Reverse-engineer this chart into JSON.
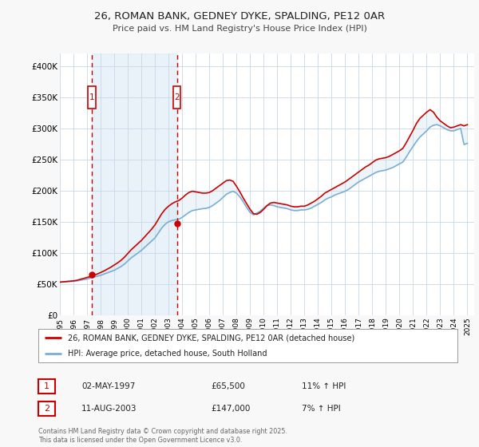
{
  "title": "26, ROMAN BANK, GEDNEY DYKE, SPALDING, PE12 0AR",
  "subtitle": "Price paid vs. HM Land Registry's House Price Index (HPI)",
  "legend_line1": "26, ROMAN BANK, GEDNEY DYKE, SPALDING, PE12 0AR (detached house)",
  "legend_line2": "HPI: Average price, detached house, South Holland",
  "footnote": "Contains HM Land Registry data © Crown copyright and database right 2025.\nThis data is licensed under the Open Government Licence v3.0.",
  "sale1_date": "02-MAY-1997",
  "sale1_price": "£65,500",
  "sale1_hpi": "11% ↑ HPI",
  "sale2_date": "11-AUG-2003",
  "sale2_price": "£147,000",
  "sale2_hpi": "7% ↑ HPI",
  "sale1_year": 1997.34,
  "sale2_year": 2003.61,
  "price_color": "#cc0000",
  "hpi_color": "#7aaed6",
  "fill_color": "#d0e4f0",
  "shade_color": "#daeaf4",
  "background_color": "#f8f8f8",
  "plot_bg_color": "#ffffff",
  "grid_color": "#c8d8e8",
  "sale_marker_color": "#cc0000",
  "dashed_line_color": "#cc0000",
  "ylim_min": 0,
  "ylim_max": 420000,
  "yticks": [
    0,
    50000,
    100000,
    150000,
    200000,
    250000,
    300000,
    350000,
    400000
  ],
  "ytick_labels": [
    "£0",
    "£50K",
    "£100K",
    "£150K",
    "£200K",
    "£250K",
    "£300K",
    "£350K",
    "£400K"
  ],
  "hpi_data": [
    [
      1995.0,
      53000
    ],
    [
      1995.25,
      53500
    ],
    [
      1995.5,
      54000
    ],
    [
      1995.75,
      54200
    ],
    [
      1996.0,
      54500
    ],
    [
      1996.25,
      55000
    ],
    [
      1996.5,
      56000
    ],
    [
      1996.75,
      57000
    ],
    [
      1997.0,
      58000
    ],
    [
      1997.25,
      59500
    ],
    [
      1997.5,
      61000
    ],
    [
      1997.75,
      62500
    ],
    [
      1998.0,
      64000
    ],
    [
      1998.25,
      66000
    ],
    [
      1998.5,
      68000
    ],
    [
      1998.75,
      70000
    ],
    [
      1999.0,
      72000
    ],
    [
      1999.25,
      75000
    ],
    [
      1999.5,
      78000
    ],
    [
      1999.75,
      82000
    ],
    [
      2000.0,
      87000
    ],
    [
      2000.25,
      92000
    ],
    [
      2000.5,
      96000
    ],
    [
      2000.75,
      100000
    ],
    [
      2001.0,
      104000
    ],
    [
      2001.25,
      109000
    ],
    [
      2001.5,
      114000
    ],
    [
      2001.75,
      119000
    ],
    [
      2002.0,
      124000
    ],
    [
      2002.25,
      132000
    ],
    [
      2002.5,
      140000
    ],
    [
      2002.75,
      146000
    ],
    [
      2003.0,
      150000
    ],
    [
      2003.25,
      152000
    ],
    [
      2003.5,
      153000
    ],
    [
      2003.75,
      154000
    ],
    [
      2004.0,
      157000
    ],
    [
      2004.25,
      161000
    ],
    [
      2004.5,
      165000
    ],
    [
      2004.75,
      168000
    ],
    [
      2005.0,
      169000
    ],
    [
      2005.25,
      170000
    ],
    [
      2005.5,
      171000
    ],
    [
      2005.75,
      171500
    ],
    [
      2006.0,
      173000
    ],
    [
      2006.25,
      176000
    ],
    [
      2006.5,
      180000
    ],
    [
      2006.75,
      184000
    ],
    [
      2007.0,
      189000
    ],
    [
      2007.25,
      194000
    ],
    [
      2007.5,
      197000
    ],
    [
      2007.75,
      199000
    ],
    [
      2008.0,
      196000
    ],
    [
      2008.25,
      190000
    ],
    [
      2008.5,
      182000
    ],
    [
      2008.75,
      173000
    ],
    [
      2009.0,
      165000
    ],
    [
      2009.25,
      161000
    ],
    [
      2009.5,
      164000
    ],
    [
      2009.75,
      167000
    ],
    [
      2010.0,
      172000
    ],
    [
      2010.25,
      176000
    ],
    [
      2010.5,
      177000
    ],
    [
      2010.75,
      176000
    ],
    [
      2011.0,
      174000
    ],
    [
      2011.25,
      173000
    ],
    [
      2011.5,
      172000
    ],
    [
      2011.75,
      171000
    ],
    [
      2012.0,
      169000
    ],
    [
      2012.25,
      168000
    ],
    [
      2012.5,
      168000
    ],
    [
      2012.75,
      169000
    ],
    [
      2013.0,
      169000
    ],
    [
      2013.25,
      170000
    ],
    [
      2013.5,
      172000
    ],
    [
      2013.75,
      175000
    ],
    [
      2014.0,
      178000
    ],
    [
      2014.25,
      181000
    ],
    [
      2014.5,
      185000
    ],
    [
      2014.75,
      188000
    ],
    [
      2015.0,
      190000
    ],
    [
      2015.25,
      193000
    ],
    [
      2015.5,
      195000
    ],
    [
      2015.75,
      197000
    ],
    [
      2016.0,
      199000
    ],
    [
      2016.25,
      202000
    ],
    [
      2016.5,
      206000
    ],
    [
      2016.75,
      210000
    ],
    [
      2017.0,
      214000
    ],
    [
      2017.25,
      217000
    ],
    [
      2017.5,
      220000
    ],
    [
      2017.75,
      223000
    ],
    [
      2018.0,
      226000
    ],
    [
      2018.25,
      229000
    ],
    [
      2018.5,
      231000
    ],
    [
      2018.75,
      232000
    ],
    [
      2019.0,
      233000
    ],
    [
      2019.25,
      235000
    ],
    [
      2019.5,
      237000
    ],
    [
      2019.75,
      240000
    ],
    [
      2020.0,
      243000
    ],
    [
      2020.25,
      246000
    ],
    [
      2020.5,
      254000
    ],
    [
      2020.75,
      263000
    ],
    [
      2021.0,
      271000
    ],
    [
      2021.25,
      279000
    ],
    [
      2021.5,
      286000
    ],
    [
      2021.75,
      291000
    ],
    [
      2022.0,
      296000
    ],
    [
      2022.25,
      302000
    ],
    [
      2022.5,
      305000
    ],
    [
      2022.75,
      306000
    ],
    [
      2023.0,
      304000
    ],
    [
      2023.25,
      301000
    ],
    [
      2023.5,
      298000
    ],
    [
      2023.75,
      296000
    ],
    [
      2024.0,
      296000
    ],
    [
      2024.25,
      298000
    ],
    [
      2024.5,
      300000
    ],
    [
      2024.75,
      274000
    ],
    [
      2025.0,
      276000
    ]
  ],
  "price_data": [
    [
      1995.0,
      53000
    ],
    [
      1995.25,
      53500
    ],
    [
      1995.5,
      54000
    ],
    [
      1995.75,
      54500
    ],
    [
      1996.0,
      55000
    ],
    [
      1996.25,
      56000
    ],
    [
      1996.5,
      57500
    ],
    [
      1996.75,
      59000
    ],
    [
      1997.0,
      60500
    ],
    [
      1997.25,
      62000
    ],
    [
      1997.5,
      64000
    ],
    [
      1997.75,
      66000
    ],
    [
      1998.0,
      68500
    ],
    [
      1998.25,
      71000
    ],
    [
      1998.5,
      74000
    ],
    [
      1998.75,
      77000
    ],
    [
      1999.0,
      80500
    ],
    [
      1999.25,
      84000
    ],
    [
      1999.5,
      88000
    ],
    [
      1999.75,
      93000
    ],
    [
      2000.0,
      99000
    ],
    [
      2000.25,
      105000
    ],
    [
      2000.5,
      110000
    ],
    [
      2000.75,
      115000
    ],
    [
      2001.0,
      120000
    ],
    [
      2001.25,
      126000
    ],
    [
      2001.5,
      132000
    ],
    [
      2001.75,
      138000
    ],
    [
      2002.0,
      145000
    ],
    [
      2002.25,
      154000
    ],
    [
      2002.5,
      163000
    ],
    [
      2002.75,
      170000
    ],
    [
      2003.0,
      175000
    ],
    [
      2003.25,
      179000
    ],
    [
      2003.5,
      182000
    ],
    [
      2003.75,
      184000
    ],
    [
      2004.0,
      188000
    ],
    [
      2004.25,
      193000
    ],
    [
      2004.5,
      197000
    ],
    [
      2004.75,
      199000
    ],
    [
      2005.0,
      198000
    ],
    [
      2005.25,
      197000
    ],
    [
      2005.5,
      196000
    ],
    [
      2005.75,
      196000
    ],
    [
      2006.0,
      197000
    ],
    [
      2006.25,
      200000
    ],
    [
      2006.5,
      204000
    ],
    [
      2006.75,
      208000
    ],
    [
      2007.0,
      212000
    ],
    [
      2007.25,
      216000
    ],
    [
      2007.5,
      217000
    ],
    [
      2007.75,
      215000
    ],
    [
      2008.0,
      207000
    ],
    [
      2008.25,
      198000
    ],
    [
      2008.5,
      188000
    ],
    [
      2008.75,
      179000
    ],
    [
      2009.0,
      170000
    ],
    [
      2009.25,
      163000
    ],
    [
      2009.5,
      162000
    ],
    [
      2009.75,
      165000
    ],
    [
      2010.0,
      170000
    ],
    [
      2010.25,
      176000
    ],
    [
      2010.5,
      180000
    ],
    [
      2010.75,
      181000
    ],
    [
      2011.0,
      180000
    ],
    [
      2011.25,
      179000
    ],
    [
      2011.5,
      178000
    ],
    [
      2011.75,
      177000
    ],
    [
      2012.0,
      175000
    ],
    [
      2012.25,
      174000
    ],
    [
      2012.5,
      174000
    ],
    [
      2012.75,
      175000
    ],
    [
      2013.0,
      175000
    ],
    [
      2013.25,
      177000
    ],
    [
      2013.5,
      180000
    ],
    [
      2013.75,
      183000
    ],
    [
      2014.0,
      187000
    ],
    [
      2014.25,
      191000
    ],
    [
      2014.5,
      196000
    ],
    [
      2014.75,
      199000
    ],
    [
      2015.0,
      202000
    ],
    [
      2015.25,
      205000
    ],
    [
      2015.5,
      208000
    ],
    [
      2015.75,
      211000
    ],
    [
      2016.0,
      214000
    ],
    [
      2016.25,
      218000
    ],
    [
      2016.5,
      222000
    ],
    [
      2016.75,
      226000
    ],
    [
      2017.0,
      230000
    ],
    [
      2017.25,
      234000
    ],
    [
      2017.5,
      238000
    ],
    [
      2017.75,
      241000
    ],
    [
      2018.0,
      245000
    ],
    [
      2018.25,
      249000
    ],
    [
      2018.5,
      251000
    ],
    [
      2018.75,
      252000
    ],
    [
      2019.0,
      253000
    ],
    [
      2019.25,
      255000
    ],
    [
      2019.5,
      258000
    ],
    [
      2019.75,
      261000
    ],
    [
      2020.0,
      264000
    ],
    [
      2020.25,
      268000
    ],
    [
      2020.5,
      277000
    ],
    [
      2020.75,
      287000
    ],
    [
      2021.0,
      297000
    ],
    [
      2021.25,
      308000
    ],
    [
      2021.5,
      316000
    ],
    [
      2021.75,
      321000
    ],
    [
      2022.0,
      326000
    ],
    [
      2022.25,
      330000
    ],
    [
      2022.5,
      326000
    ],
    [
      2022.75,
      318000
    ],
    [
      2023.0,
      312000
    ],
    [
      2023.25,
      308000
    ],
    [
      2023.5,
      304000
    ],
    [
      2023.75,
      301000
    ],
    [
      2024.0,
      302000
    ],
    [
      2024.25,
      304000
    ],
    [
      2024.5,
      306000
    ],
    [
      2024.75,
      304000
    ],
    [
      2025.0,
      306000
    ]
  ]
}
